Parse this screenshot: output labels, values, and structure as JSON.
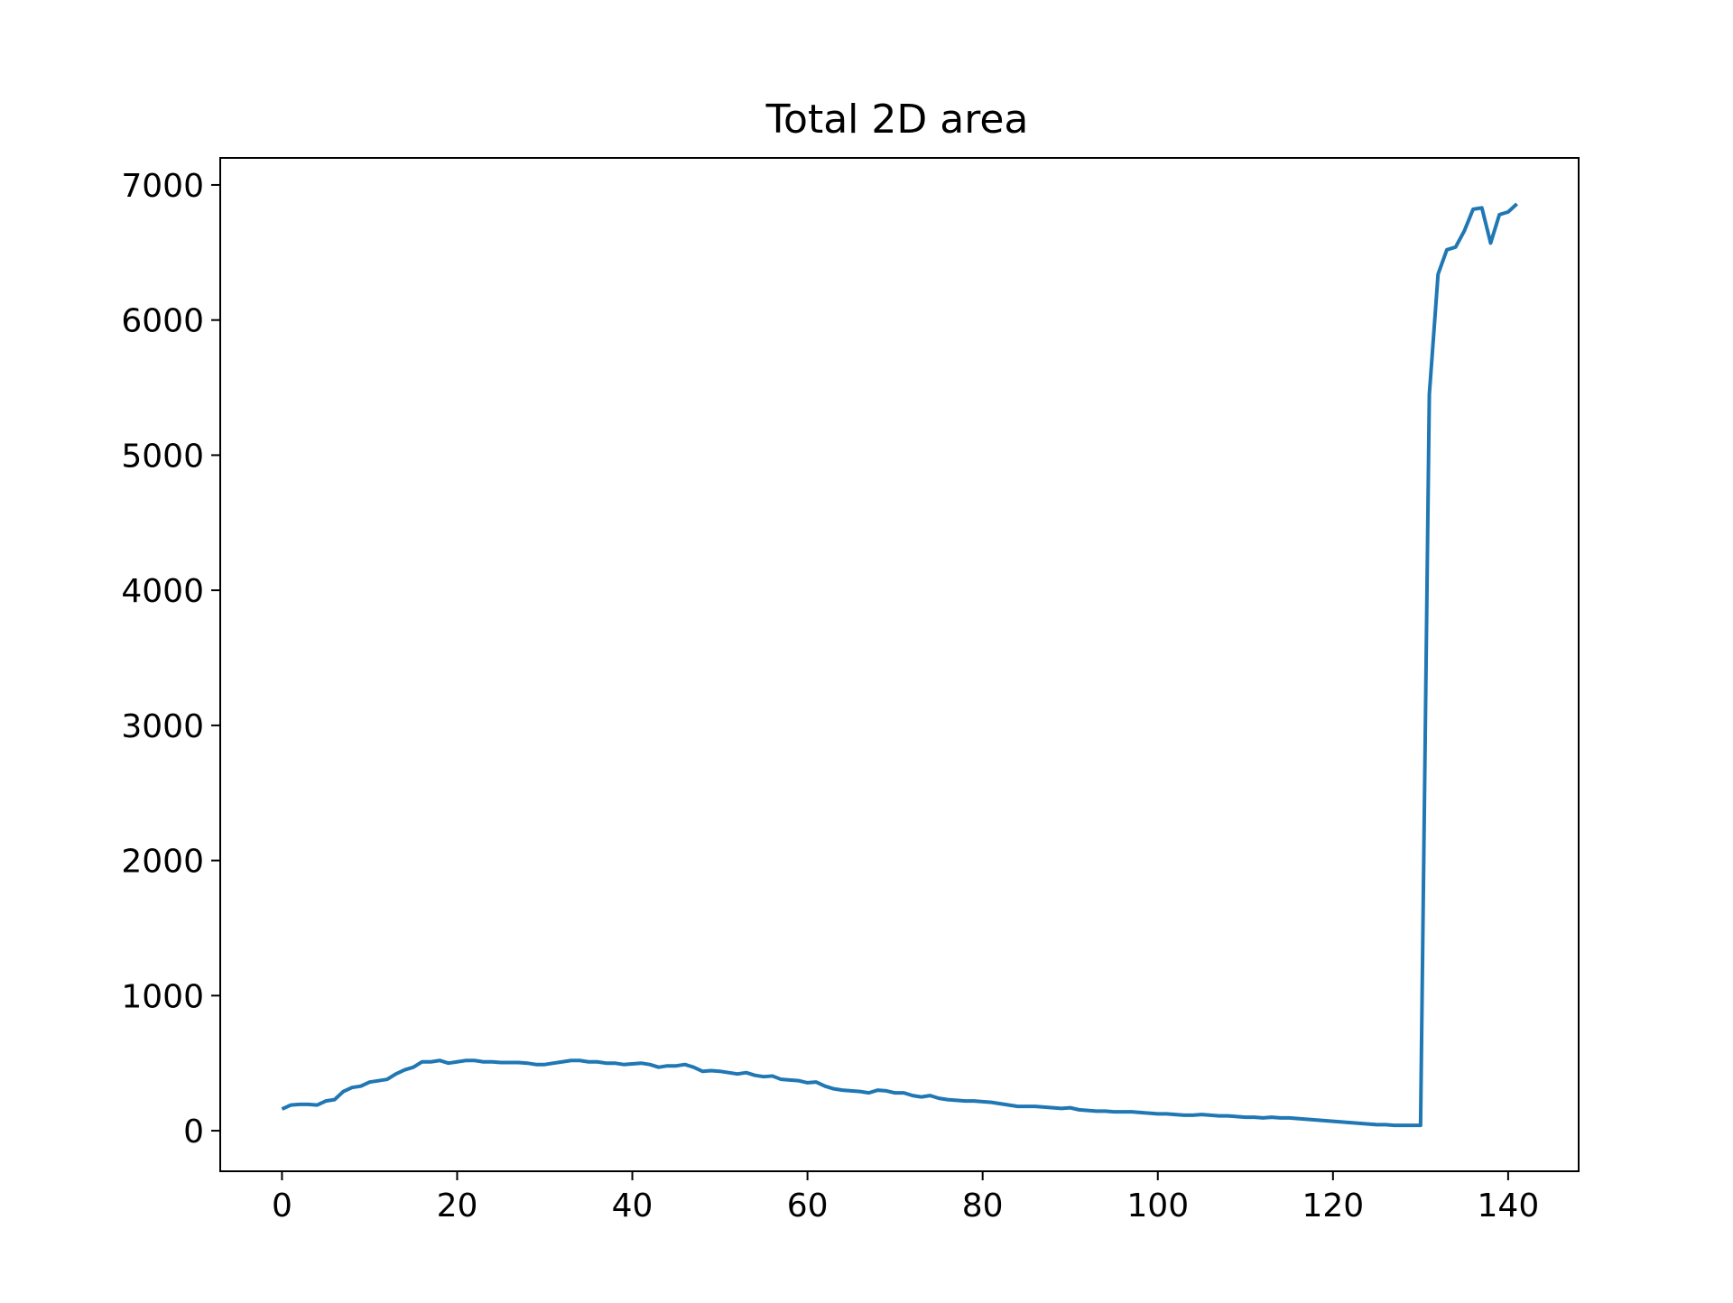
{
  "chart_data": {
    "type": "line",
    "title": "Total 2D area",
    "xlabel": "",
    "ylabel": "",
    "xlim": [
      -7.05,
      148.05
    ],
    "ylim": [
      -300,
      7200
    ],
    "xticks": [
      0,
      20,
      40,
      60,
      80,
      100,
      120,
      140
    ],
    "yticks": [
      0,
      1000,
      2000,
      3000,
      4000,
      5000,
      6000,
      7000
    ],
    "grid": false,
    "legend": "none",
    "series": [
      {
        "color": "#1f77b4",
        "x": [
          0,
          1,
          2,
          3,
          4,
          5,
          6,
          7,
          8,
          9,
          10,
          11,
          12,
          13,
          14,
          15,
          16,
          17,
          18,
          19,
          20,
          21,
          22,
          23,
          24,
          25,
          26,
          27,
          28,
          29,
          30,
          31,
          32,
          33,
          34,
          35,
          36,
          37,
          38,
          39,
          40,
          41,
          42,
          43,
          44,
          45,
          46,
          47,
          48,
          49,
          50,
          51,
          52,
          53,
          54,
          55,
          56,
          57,
          58,
          59,
          60,
          61,
          62,
          63,
          64,
          65,
          66,
          67,
          68,
          69,
          70,
          71,
          72,
          73,
          74,
          75,
          76,
          77,
          78,
          79,
          80,
          81,
          82,
          83,
          84,
          85,
          86,
          87,
          88,
          89,
          90,
          91,
          92,
          93,
          94,
          95,
          96,
          97,
          98,
          99,
          100,
          101,
          102,
          103,
          104,
          105,
          106,
          107,
          108,
          109,
          110,
          111,
          112,
          113,
          114,
          115,
          116,
          117,
          118,
          119,
          120,
          121,
          122,
          123,
          124,
          125,
          126,
          127,
          128,
          129,
          130,
          131,
          132,
          133,
          134,
          135,
          136,
          137,
          138,
          139,
          140,
          141
        ],
        "y": [
          160,
          190,
          195,
          195,
          190,
          220,
          230,
          290,
          320,
          330,
          360,
          370,
          380,
          420,
          450,
          470,
          510,
          510,
          520,
          500,
          510,
          520,
          520,
          510,
          510,
          505,
          505,
          505,
          500,
          490,
          490,
          500,
          510,
          520,
          520,
          510,
          510,
          500,
          500,
          490,
          495,
          500,
          490,
          470,
          480,
          480,
          490,
          470,
          440,
          445,
          440,
          430,
          420,
          430,
          410,
          400,
          405,
          380,
          375,
          370,
          355,
          360,
          330,
          310,
          300,
          295,
          290,
          280,
          300,
          295,
          280,
          280,
          260,
          250,
          260,
          240,
          230,
          225,
          220,
          220,
          215,
          210,
          200,
          190,
          180,
          180,
          180,
          175,
          170,
          165,
          170,
          155,
          150,
          145,
          145,
          140,
          140,
          140,
          135,
          130,
          125,
          125,
          120,
          115,
          115,
          120,
          115,
          110,
          110,
          105,
          100,
          100,
          95,
          100,
          95,
          95,
          90,
          85,
          80,
          75,
          70,
          65,
          60,
          55,
          50,
          45,
          45,
          40,
          40,
          40,
          40,
          5450,
          6340,
          6520,
          6540,
          6660,
          6820,
          6830,
          6570,
          6780,
          6800,
          6860
        ]
      }
    ]
  }
}
